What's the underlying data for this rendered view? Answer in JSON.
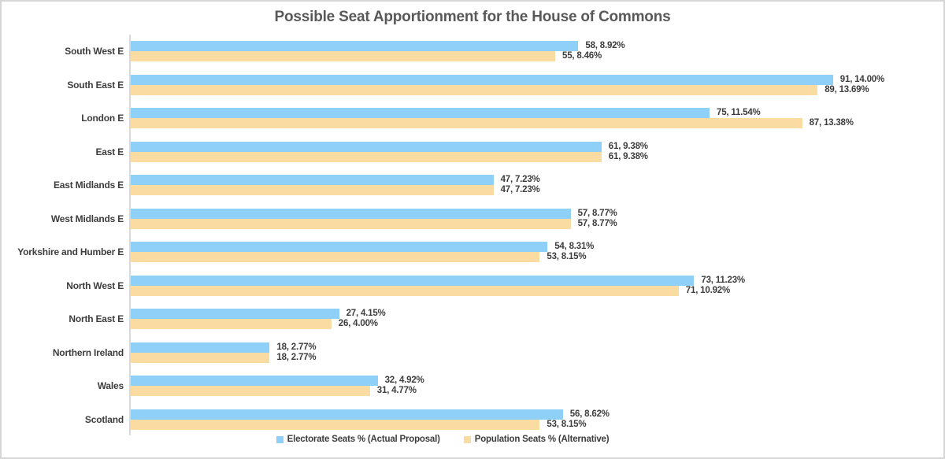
{
  "frame": {
    "background": "#ffffff",
    "border_color": "#d6d6d6"
  },
  "text_colors": {
    "title": "#595959",
    "labels": "#3d3d3d",
    "axis_line": "#d9d9d9"
  },
  "chart_data": {
    "type": "bar",
    "orientation": "horizontal",
    "title": "Possible Seat Apportionment for the House of Commons",
    "categories": [
      "South West E",
      "South East E",
      "London E",
      "East E",
      "East Midlands E",
      "West Midlands E",
      "Yorkshire and Humber E",
      "North West E",
      "North East E",
      "Northern Ireland",
      "Wales",
      "Scotland"
    ],
    "series": [
      {
        "name": "Electorate Seats % (Actual Proposal)",
        "color": "#8ED0F8",
        "values": [
          58,
          91,
          75,
          61,
          47,
          57,
          54,
          73,
          27,
          18,
          32,
          56
        ],
        "percent_labels": [
          "8.92%",
          "14.00%",
          "11.54%",
          "9.38%",
          "7.23%",
          "8.77%",
          "8.31%",
          "11.23%",
          "4.15%",
          "2.77%",
          "4.92%",
          "8.62%"
        ]
      },
      {
        "name": "Population Seats % (Alternative)",
        "color": "#FADCA2",
        "values": [
          55,
          89,
          87,
          61,
          47,
          57,
          53,
          71,
          26,
          18,
          31,
          53
        ],
        "percent_labels": [
          "8.46%",
          "13.69%",
          "13.38%",
          "9.38%",
          "7.23%",
          "8.77%",
          "8.15%",
          "10.92%",
          "4.00%",
          "2.77%",
          "4.77%",
          "8.15%"
        ]
      }
    ],
    "data_label_format": "value, percent",
    "xlim": [
      0,
      104
    ],
    "grid": false,
    "legend_position": "bottom"
  }
}
